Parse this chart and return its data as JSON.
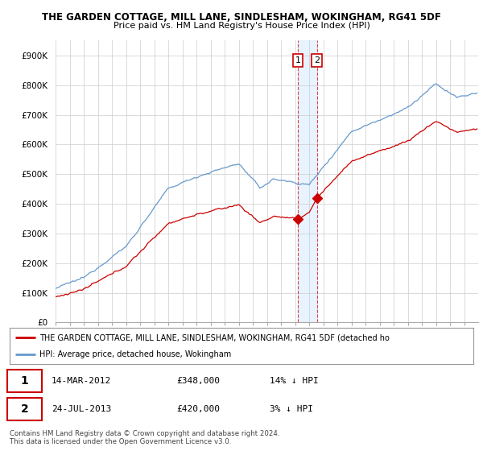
{
  "title": "THE GARDEN COTTAGE, MILL LANE, SINDLESHAM, WOKINGHAM, RG41 5DF",
  "subtitle": "Price paid vs. HM Land Registry's House Price Index (HPI)",
  "ylim": [
    0,
    950000
  ],
  "yticks": [
    0,
    100000,
    200000,
    300000,
    400000,
    500000,
    600000,
    700000,
    800000,
    900000
  ],
  "ytick_labels": [
    "£0",
    "£100K",
    "£200K",
    "£300K",
    "£400K",
    "£500K",
    "£600K",
    "£700K",
    "£800K",
    "£900K"
  ],
  "hpi_color": "#6699cc",
  "price_color": "#cc0000",
  "marker_color": "#cc0000",
  "legend_label_1": "THE GARDEN COTTAGE, MILL LANE, SINDLESHAM, WOKINGHAM, RG41 5DF (detached ho",
  "legend_label_2": "HPI: Average price, detached house, Wokingham",
  "sale_1_date": 2012.2,
  "sale_1_price": 348000,
  "sale_2_date": 2013.56,
  "sale_2_price": 420000,
  "footer": "Contains HM Land Registry data © Crown copyright and database right 2024.\nThis data is licensed under the Open Government Licence v3.0.",
  "background_color": "#ffffff",
  "grid_color": "#cccccc",
  "shade_color": "#ddeeff"
}
